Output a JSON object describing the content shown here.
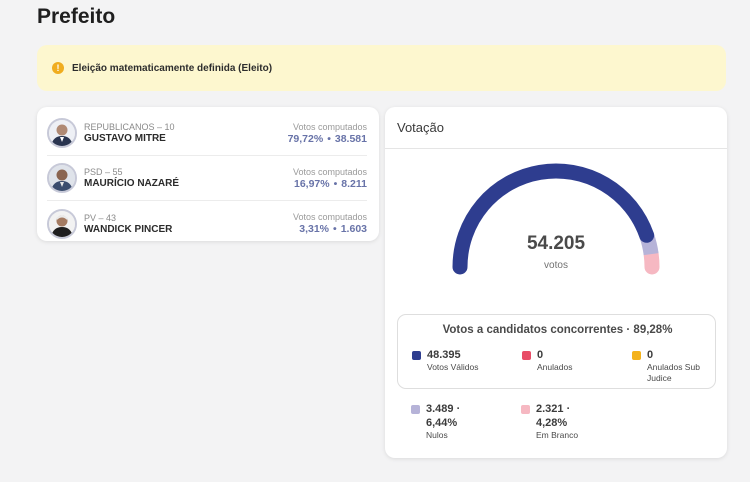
{
  "page": {
    "title": "Prefeito"
  },
  "alert": {
    "icon": "info-icon",
    "text": "Eleição matematicamente definida (Eleito)"
  },
  "candidates": [
    {
      "party": "REPUBLICANOS – 10",
      "name": "GUSTAVO MITRE",
      "votes_label": "Votos computados",
      "percent": "79,72%",
      "votes": "38.581"
    },
    {
      "party": "PSD – 55",
      "name": "MAURÍCIO NAZARÉ",
      "votes_label": "Votos computados",
      "percent": "16,97%",
      "votes": "8.211"
    },
    {
      "party": "PV – 43",
      "name": "WANDICK PINCER",
      "votes_label": "Votos computados",
      "percent": "3,31%",
      "votes": "1.603"
    }
  ],
  "voting": {
    "header": "Votação",
    "total": "54.205",
    "total_unit": "votos",
    "gauge_fractions": {
      "valid": 0.8928,
      "null": 0.0644,
      "blank": 0.0428
    },
    "colors": {
      "valid": "#2e3d8f",
      "null": "#b6b3d8",
      "blank": "#f6b8c2",
      "annulled": "#e84c66",
      "sub_judice": "#f4b21b"
    },
    "valid_title": "Votos a candidatos concorrentes · 89,28%",
    "stats": {
      "valid": {
        "value": "48.395",
        "label": "Votos Válidos"
      },
      "annulled": {
        "value": "0",
        "label": "Anulados"
      },
      "sub_judice": {
        "value": "0",
        "label": "Anulados Sub Judice"
      },
      "null": {
        "value_line1": "3.489 ·",
        "value_line2": "6,44%",
        "label": "Nulos"
      },
      "blank": {
        "value_line1": "2.321 ·",
        "value_line2": "4,28%",
        "label": "Em Branco"
      }
    }
  }
}
